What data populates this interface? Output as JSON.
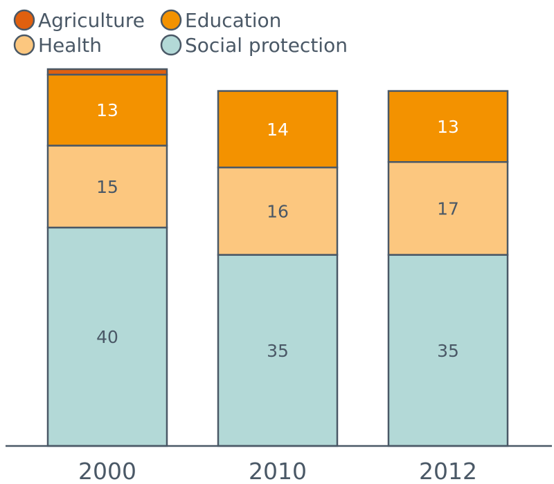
{
  "chart_data": {
    "type": "bar",
    "stacked": true,
    "categories": [
      "2000",
      "2010",
      "2012"
    ],
    "series": [
      {
        "name": "Social protection",
        "values": [
          40,
          35,
          35
        ],
        "color": "#b3d9d7",
        "label_color": "#4a5866"
      },
      {
        "name": "Health",
        "values": [
          15,
          16,
          17
        ],
        "color": "#fcc77f",
        "label_color": "#4a5866"
      },
      {
        "name": "Education",
        "values": [
          13,
          14,
          13
        ],
        "color": "#f39200",
        "label_color": "#ffffff"
      },
      {
        "name": "Agriculture",
        "values": [
          1,
          0,
          0
        ],
        "color": "#e0600f",
        "label_color": "#ffffff"
      }
    ],
    "data_labels": [
      [
        "40",
        "35",
        "35"
      ],
      [
        "15",
        "16",
        "17"
      ],
      [
        "13",
        "14",
        "13"
      ],
      [
        "",
        "",
        ""
      ]
    ],
    "legend_order": [
      "Agriculture",
      "Education",
      "Health",
      "Social protection"
    ],
    "legend_position": "top-left",
    "ylim": [
      0,
      69
    ],
    "grid": false,
    "title": "",
    "xlabel": "",
    "ylabel": "",
    "colors": {
      "outline": "#4a5866",
      "text": "#4a5866",
      "axis": "#4a5866"
    }
  }
}
